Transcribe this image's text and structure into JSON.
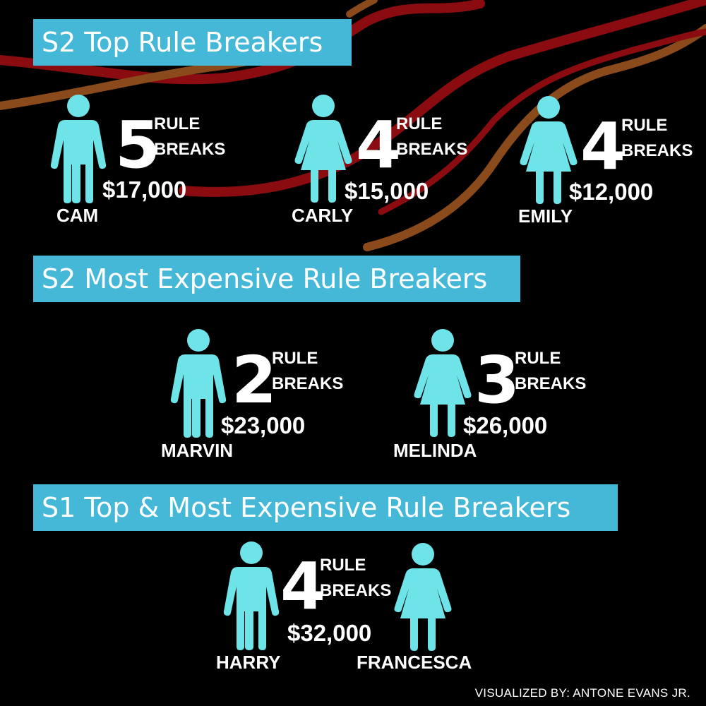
{
  "colors": {
    "banner": "#45b8d8",
    "figure": "#6ee3e8",
    "background": "#000000",
    "stripe_red": "#8b0c10",
    "stripe_brown": "#8a4a1b"
  },
  "sections": [
    {
      "title": "S2 Top Rule Breakers",
      "people": [
        {
          "name": "CAM",
          "icon": "male-person-icon",
          "count": "5",
          "label1": "RULE",
          "label2": "BREAKS",
          "amount": "$17,000"
        },
        {
          "name": "CARLY",
          "icon": "female-person-icon",
          "count": "4",
          "label1": "RULE",
          "label2": "BREAKS",
          "amount": "$15,000"
        },
        {
          "name": "EMILY",
          "icon": "female-person-icon",
          "count": "4",
          "label1": "RULE",
          "label2": "BREAKS",
          "amount": "$12,000"
        }
      ]
    },
    {
      "title": "S2 Most Expensive Rule Breakers",
      "people": [
        {
          "name": "MARVIN",
          "icon": "male-person-icon",
          "count": "2",
          "label1": "RULE",
          "label2": "BREAKS",
          "amount": "$23,000"
        },
        {
          "name": "MELINDA",
          "icon": "female-person-icon",
          "count": "3",
          "label1": "RULE",
          "label2": "BREAKS",
          "amount": "$26,000"
        }
      ]
    },
    {
      "title": "S1 Top & Most Expensive Rule Breakers",
      "pair": {
        "count": "4",
        "label1": "RULE",
        "label2": "BREAKS",
        "amount": "$32,000",
        "people": [
          {
            "name": "HARRY",
            "icon": "male-person-icon"
          },
          {
            "name": "FRANCESCA",
            "icon": "female-person-icon"
          }
        ]
      }
    }
  ],
  "credit": "VISUALIZED BY: ANTONE EVANS JR."
}
